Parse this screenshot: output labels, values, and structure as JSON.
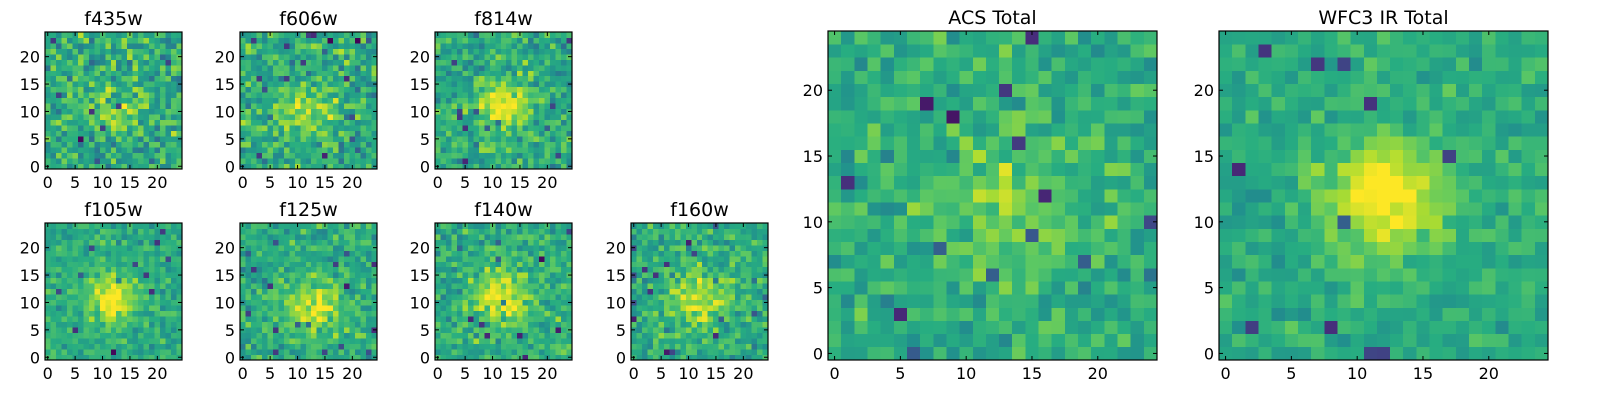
{
  "chart_data": {
    "type": "heatmap",
    "colormap": "viridis",
    "grid": false,
    "panels": [
      {
        "id": "f435w",
        "title": "f435w",
        "size": 25,
        "xticks": [
          0,
          5,
          10,
          15,
          20
        ],
        "yticks": [
          0,
          5,
          10,
          15,
          20
        ],
        "center": [
          12,
          10
        ],
        "peak": 0.15,
        "sigma": 3.5,
        "noise": 0.34,
        "seed": 11
      },
      {
        "id": "f606w",
        "title": "f606w",
        "size": 25,
        "xticks": [
          0,
          5,
          10,
          15,
          20
        ],
        "yticks": [
          0,
          5,
          10,
          15,
          20
        ],
        "center": [
          12,
          10
        ],
        "peak": 0.25,
        "sigma": 3.5,
        "noise": 0.32,
        "seed": 23
      },
      {
        "id": "f814w",
        "title": "f814w",
        "size": 25,
        "xticks": [
          0,
          5,
          10,
          15,
          20
        ],
        "yticks": [
          0,
          5,
          10,
          15,
          20
        ],
        "center": [
          12,
          11
        ],
        "peak": 0.35,
        "sigma": 3.2,
        "noise": 0.3,
        "seed": 37
      },
      {
        "id": "f105w",
        "title": "f105w",
        "size": 25,
        "xticks": [
          0,
          5,
          10,
          15,
          20
        ],
        "yticks": [
          0,
          5,
          10,
          15,
          20
        ],
        "center": [
          12,
          11
        ],
        "peak": 0.4,
        "sigma": 3.0,
        "noise": 0.22,
        "seed": 41
      },
      {
        "id": "f125w",
        "title": "f125w",
        "size": 25,
        "xticks": [
          0,
          5,
          10,
          15,
          20
        ],
        "yticks": [
          0,
          5,
          10,
          15,
          20
        ],
        "center": [
          13,
          9
        ],
        "peak": 0.3,
        "sigma": 3.5,
        "noise": 0.25,
        "seed": 53
      },
      {
        "id": "f140w",
        "title": "f140w",
        "size": 25,
        "xticks": [
          0,
          5,
          10,
          15,
          20
        ],
        "yticks": [
          0,
          5,
          10,
          15,
          20
        ],
        "center": [
          12,
          11
        ],
        "peak": 0.35,
        "sigma": 3.5,
        "noise": 0.27,
        "seed": 67
      },
      {
        "id": "f160w",
        "title": "f160w",
        "size": 25,
        "xticks": [
          0,
          5,
          10,
          15,
          20
        ],
        "yticks": [
          0,
          5,
          10,
          15,
          20
        ],
        "center": [
          12,
          11
        ],
        "peak": 0.3,
        "sigma": 3.5,
        "noise": 0.28,
        "seed": 79
      },
      {
        "id": "acs_total",
        "title": "ACS Total",
        "size": 25,
        "xticks": [
          0,
          5,
          10,
          15,
          20
        ],
        "yticks": [
          0,
          5,
          10,
          15,
          20
        ],
        "center": [
          13,
          11
        ],
        "peak": 0.2,
        "sigma": 4.0,
        "noise": 0.24,
        "seed": 97
      },
      {
        "id": "wfc3_ir_total",
        "title": "WFC3 IR Total",
        "size": 25,
        "xticks": [
          0,
          5,
          10,
          15,
          20
        ],
        "yticks": [
          0,
          5,
          10,
          15,
          20
        ],
        "center": [
          12,
          12
        ],
        "peak": 0.45,
        "sigma": 3.0,
        "noise": 0.18,
        "seed": 131
      }
    ]
  }
}
